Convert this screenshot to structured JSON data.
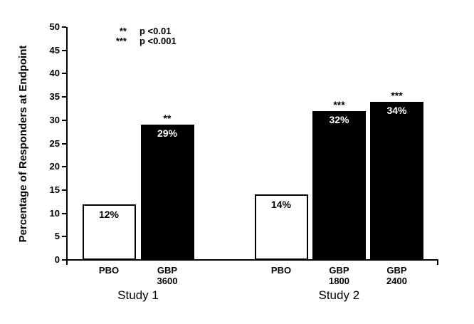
{
  "chart_data": {
    "type": "bar",
    "title": "",
    "xlabel": "",
    "ylabel": "Percentage of Responders at Endpoint",
    "ylim": [
      0,
      50
    ],
    "yticks": [
      0,
      5,
      10,
      15,
      20,
      25,
      30,
      35,
      40,
      45,
      50
    ],
    "grid": false,
    "legend_position": "top-left-inside",
    "groups": [
      {
        "label": "Study 1",
        "bars": [
          {
            "category_lines": [
              "PBO"
            ],
            "value": 12,
            "value_label": "12%",
            "fill": "open",
            "significance": ""
          },
          {
            "category_lines": [
              "GBP",
              "3600"
            ],
            "value": 29,
            "value_label": "29%",
            "fill": "solid",
            "significance": "**"
          }
        ]
      },
      {
        "label": "Study 2",
        "bars": [
          {
            "category_lines": [
              "PBO"
            ],
            "value": 14,
            "value_label": "14%",
            "fill": "open",
            "significance": ""
          },
          {
            "category_lines": [
              "GBP",
              "1800"
            ],
            "value": 32,
            "value_label": "32%",
            "fill": "solid",
            "significance": "***"
          },
          {
            "category_lines": [
              "GBP",
              "2400"
            ],
            "value": 34,
            "value_label": "34%",
            "fill": "solid",
            "significance": "***"
          }
        ]
      }
    ],
    "significance_legend": [
      {
        "symbol": "**",
        "text": "p <0.01"
      },
      {
        "symbol": "***",
        "text": "p <0.001"
      }
    ],
    "colors": {
      "axis": "#000000",
      "bar_solid_fill": "#000000",
      "bar_open_fill": "#ffffff",
      "bar_border": "#000000",
      "label_on_solid": "#ffffff",
      "label_on_open": "#000000",
      "background": "#ffffff"
    }
  }
}
